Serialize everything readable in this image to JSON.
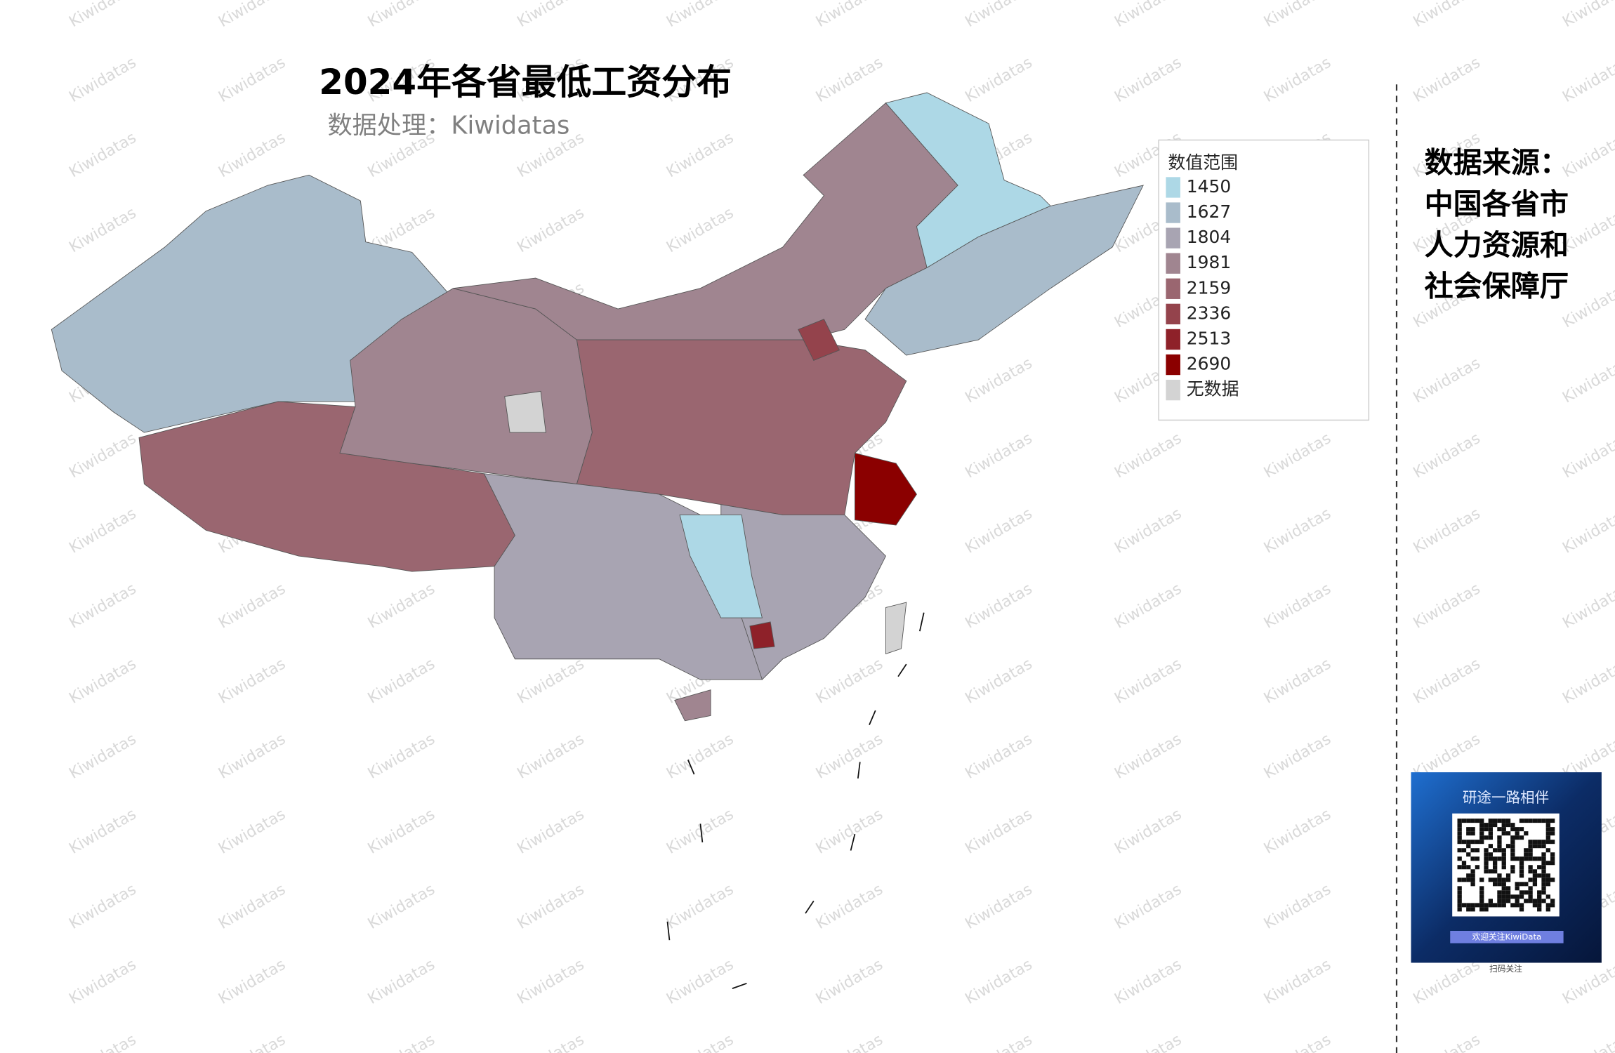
{
  "header": {
    "title": "2024年各省最低工资分布",
    "subtitle": "数据处理：Kiwidatas"
  },
  "watermark": "Kiwidatas",
  "legend": {
    "title": "数值范围",
    "items": [
      {
        "value": 1450,
        "color": "#add8e6"
      },
      {
        "value": 1627,
        "color": "#a9bccb"
      },
      {
        "value": 1804,
        "color": "#a8a4b2"
      },
      {
        "value": 1981,
        "color": "#a08590"
      },
      {
        "value": 2159,
        "color": "#9a6670"
      },
      {
        "value": 2336,
        "color": "#94434c"
      },
      {
        "value": 2513,
        "color": "#8e2129"
      },
      {
        "value": 2690,
        "color": "#8b0000"
      }
    ],
    "no_data": {
      "label": "无数据",
      "color": "#d3d3d3"
    }
  },
  "source": {
    "lines": [
      "数据来源：",
      "中国各省市",
      "人力资源和",
      "社会保障厅"
    ]
  },
  "qr_card": {
    "heading": "研途一路相伴",
    "banner": "欢迎关注KiwiData",
    "caption": "扫码关注"
  }
}
